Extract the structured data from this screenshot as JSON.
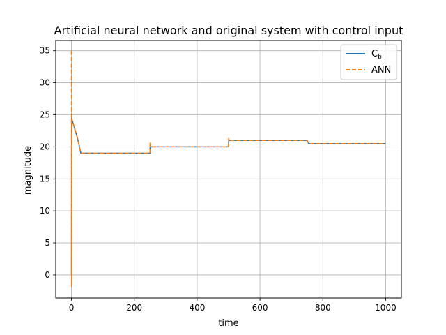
{
  "chart_data": {
    "type": "line",
    "title": "Artificial neural network and original system with control input",
    "xlabel": "time",
    "ylabel": "magnitude",
    "xlim": [
      -50,
      1050
    ],
    "ylim": [
      -3.6,
      36.6
    ],
    "xticks": [
      0,
      200,
      400,
      600,
      800,
      1000
    ],
    "yticks": [
      0,
      5,
      10,
      15,
      20,
      25,
      30,
      35
    ],
    "grid": true,
    "legend_position": "top-right",
    "series": [
      {
        "name": "C_b",
        "legend_base": "C",
        "legend_sub": "b",
        "color": "#1f77b4",
        "dash": "solid",
        "x": [
          0,
          0.5,
          1,
          2,
          5,
          10,
          15,
          20,
          25,
          30,
          35,
          100,
          150,
          200,
          250,
          250.5,
          400,
          500,
          500.5,
          600,
          750,
          755,
          900,
          1000
        ],
        "y": [
          0,
          24.5,
          24.4,
          24.2,
          23.7,
          22.9,
          22.1,
          21.2,
          20.1,
          19.0,
          19.0,
          19.0,
          19.0,
          19.0,
          19.0,
          20.0,
          20.0,
          20.0,
          21.0,
          21.0,
          21.0,
          20.5,
          20.5,
          20.5
        ]
      },
      {
        "name": "ANN",
        "color": "#ff7f0e",
        "dash": "dashed",
        "x": [
          0,
          0.2,
          0.4,
          0.6,
          0.8,
          1.0,
          1.5,
          2,
          5,
          10,
          15,
          20,
          25,
          30,
          35,
          100,
          150,
          200,
          250,
          250.3,
          251,
          400,
          500,
          500.3,
          501,
          600,
          750,
          755,
          900,
          1000
        ],
        "y": [
          35,
          25,
          -1.8,
          5,
          15,
          24.4,
          24.4,
          24.2,
          23.7,
          22.9,
          22.1,
          21.2,
          20.1,
          19.0,
          19.0,
          19.0,
          19.0,
          19.0,
          19.0,
          20.8,
          20.0,
          20.0,
          20.0,
          21.3,
          21.0,
          21.0,
          21.0,
          20.5,
          20.5,
          20.5
        ]
      }
    ]
  }
}
